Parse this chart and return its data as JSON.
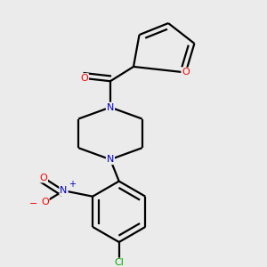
{
  "bg_color": "#ebebeb",
  "atom_colors": {
    "C": "#000000",
    "N": "#0000cc",
    "O": "#ff0000",
    "Cl": "#00aa00"
  },
  "bond_color": "#000000",
  "bond_width": 1.6,
  "fig_bg": "#ebebeb"
}
